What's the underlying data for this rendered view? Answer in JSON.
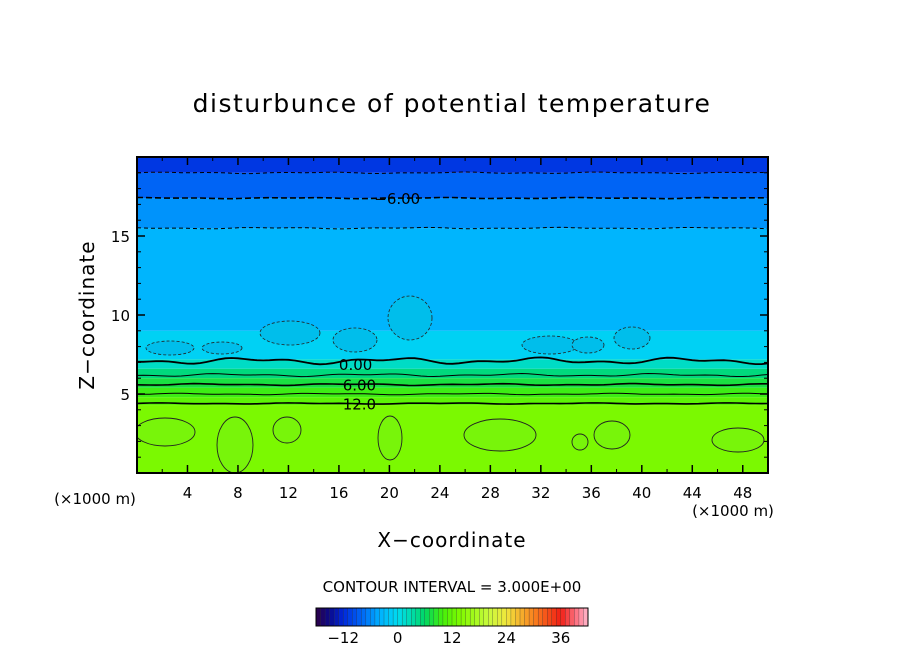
{
  "chart_data": {
    "type": "heatmap",
    "title": "disturbunce of potential temperature",
    "xlabel": "X−coordinate",
    "ylabel": "Z−coordinate",
    "x_unit_left": "(×1000 m)",
    "x_unit_right": "(×1000 m)",
    "xlim": [
      0,
      50
    ],
    "ylim": [
      0,
      20
    ],
    "x_ticks": [
      4,
      8,
      12,
      16,
      20,
      24,
      28,
      32,
      36,
      40,
      44,
      48
    ],
    "y_ticks": [
      5,
      10,
      15
    ],
    "contour_interval_label": "CONTOUR INTERVAL = 3.000E+00",
    "contour_labels": [
      {
        "text": "−6.00",
        "x": 18.8,
        "z": 17.4
      },
      {
        "text": "0.00",
        "x": 16.0,
        "z": 6.9
      },
      {
        "text": "6.00",
        "x": 16.3,
        "z": 5.6
      },
      {
        "text": "12.0",
        "x": 16.3,
        "z": 4.4
      }
    ],
    "layers": [
      {
        "z0": 0,
        "z1": 4.3,
        "value": 13.5
      },
      {
        "z0": 4.3,
        "z1": 4.8,
        "value": 11.5
      },
      {
        "z0": 4.8,
        "z1": 5.4,
        "value": 9.5
      },
      {
        "z0": 5.4,
        "z1": 6.0,
        "value": 7.5
      },
      {
        "z0": 6.0,
        "z1": 6.6,
        "value": 5.0
      },
      {
        "z0": 6.6,
        "z1": 7.2,
        "value": 2.0
      },
      {
        "z0": 7.2,
        "z1": 9.0,
        "value": -1.0
      },
      {
        "z0": 9.0,
        "z1": 15.5,
        "value": -3.5
      },
      {
        "z0": 15.5,
        "z1": 17.4,
        "value": -5.5
      },
      {
        "z0": 17.4,
        "z1": 19.0,
        "value": -8.0
      },
      {
        "z0": 19.0,
        "z1": 20.0,
        "value": -11.0
      }
    ],
    "colorbar": {
      "range": [
        -18,
        42
      ],
      "tick_values": [
        -12,
        0,
        12,
        24,
        36
      ],
      "tick_labels": [
        "−12",
        "0",
        "12",
        "24",
        "36"
      ]
    }
  }
}
